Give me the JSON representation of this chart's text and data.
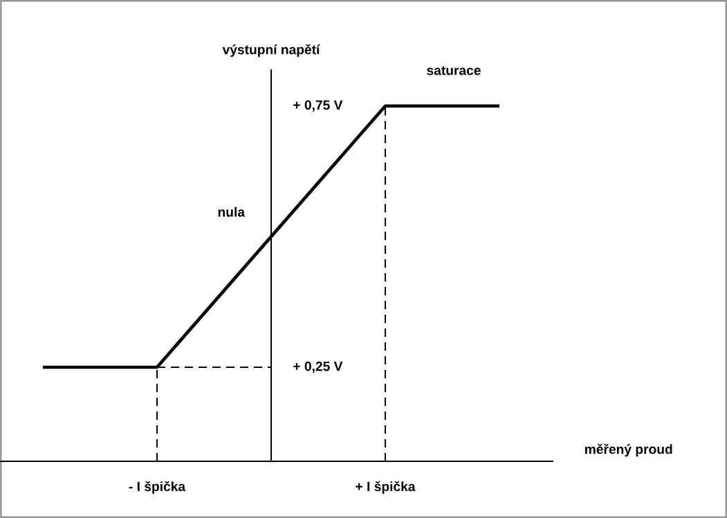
{
  "chart_data": {
    "type": "line",
    "xlabel": "měřený proud",
    "ylabel": "výstupní napětí",
    "categories": [
      null,
      "- I špička",
      null,
      "+ I špička",
      null
    ],
    "ylim": [
      0.07,
      0.82
    ],
    "yticks": [
      {
        "value": 0.25,
        "label": "+ 0,25 V"
      },
      {
        "value": 0.75,
        "label": "+ 0,75 V"
      }
    ],
    "series": [
      {
        "color": "#000000",
        "line_style": "solid",
        "values": [
          0.25,
          0.25,
          0.5,
          0.75,
          0.75
        ]
      },
      {
        "color": "#000000",
        "line_style": "dashed",
        "values": [
          null,
          0.25,
          0.25,
          null,
          null
        ]
      }
    ],
    "ref_lines": [
      {
        "axis": "x",
        "value": "- I špička",
        "line_style": "dashed",
        "color": "#000000"
      },
      {
        "axis": "x",
        "value": "+ I špička",
        "line_style": "dashed",
        "color": "#000000"
      }
    ],
    "annotations": [
      "nula",
      "saturace"
    ]
  }
}
